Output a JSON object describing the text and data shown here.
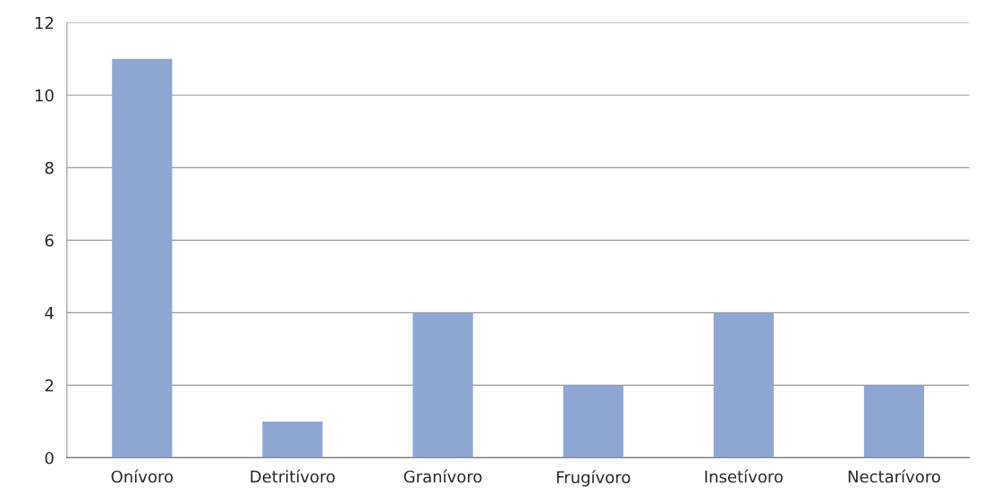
{
  "chart_data": {
    "type": "bar",
    "categories": [
      "Onívoro",
      "Detritívoro",
      "Granívoro",
      "Frugívoro",
      "Insetívoro",
      "Nectarívoro"
    ],
    "values": [
      11,
      1,
      4,
      2,
      4,
      2
    ],
    "color": "#8ea6d2",
    "ylim": [
      0,
      12
    ],
    "yticks": [
      0,
      2,
      4,
      6,
      8,
      10,
      12
    ],
    "grid": "y"
  }
}
